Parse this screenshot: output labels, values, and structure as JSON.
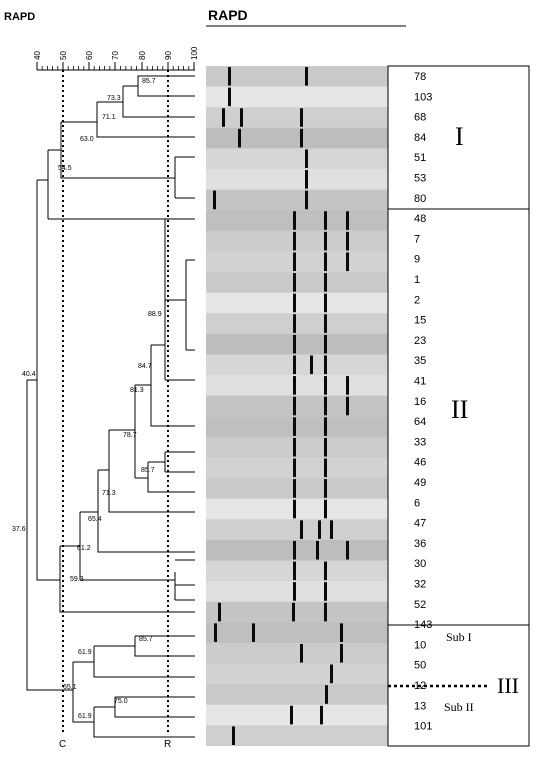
{
  "header": {
    "left_title": "RAPD",
    "top_title": "RAPD"
  },
  "scale": {
    "ticks": [
      "40",
      "50",
      "60",
      "70",
      "80",
      "90",
      "100"
    ],
    "cutoff_c_label": "C",
    "cutoff_r_label": "R"
  },
  "node_labels": [
    "85.7",
    "73.3",
    "71.1",
    "63.0",
    "54.5",
    "88.9",
    "84.7",
    "81.3",
    "78.7",
    "85.7",
    "71.3",
    "65.4",
    "61.2",
    "59.3",
    "40.4",
    "37.6",
    "85.7",
    "61.9",
    "65.1",
    "75.0",
    "61.9"
  ],
  "isolates": [
    "78",
    "103",
    "68",
    "84",
    "51",
    "53",
    "80",
    "48",
    "7",
    "9",
    "1",
    "2",
    "15",
    "23",
    "35",
    "41",
    "16",
    "64",
    "33",
    "46",
    "49",
    "6",
    "47",
    "36",
    "30",
    "32",
    "52",
    "143",
    "10",
    "50",
    "12",
    "13",
    "101"
  ],
  "clusters": {
    "I": "I",
    "II": "II",
    "III": "III",
    "sub1": "Sub I",
    "sub2": "Sub II"
  },
  "gel": {
    "lane_count": 33,
    "band_color": "#0a0a0a",
    "background_shades": [
      "#c9c9c9",
      "#e6e6e6",
      "#cfcfcf",
      "#bdbdbd",
      "#d6d6d6",
      "#e0e0e0",
      "#c4c4c4",
      "#bfbfbf",
      "#cccccc",
      "#d2d2d2"
    ]
  }
}
